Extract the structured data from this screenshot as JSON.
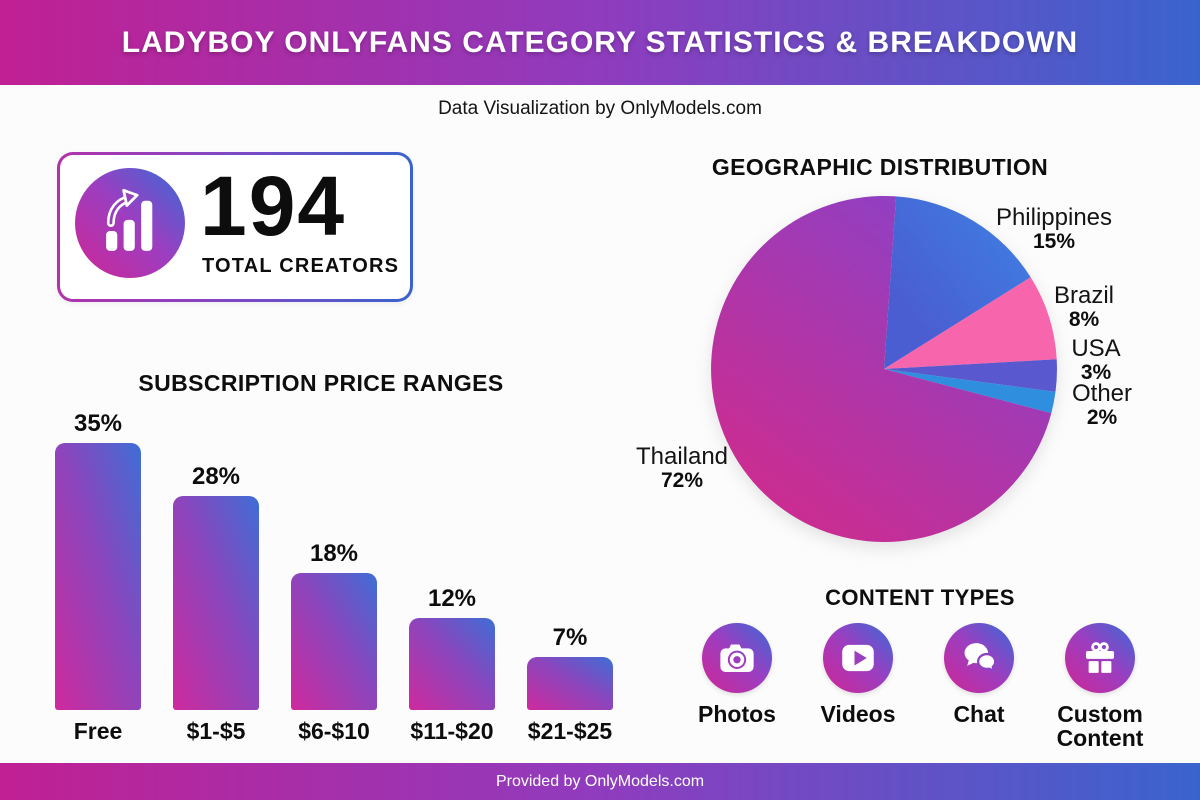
{
  "header": {
    "title": "LADYBOY ONLYFANS CATEGORY STATISTICS & BREAKDOWN"
  },
  "subtitle": "Data Visualization by OnlyModels.com",
  "stat_card": {
    "value": "194",
    "label": "TOTAL CREATORS",
    "icon": "bar-growth-arrow-icon"
  },
  "chart_data": [
    {
      "type": "bar",
      "title": "SUBSCRIPTION PRICE RANGES",
      "categories": [
        "Free",
        "$1-$5",
        "$6-$10",
        "$11-$20",
        "$21-$25"
      ],
      "values": [
        35,
        28,
        18,
        12,
        7
      ],
      "value_labels": [
        "35%",
        "28%",
        "18%",
        "12%",
        "7%"
      ],
      "unit": "percent",
      "ylim": [
        0,
        35
      ],
      "grid": false,
      "bar_gradient": [
        "#cf2a9e",
        "#8a46bd",
        "#3e6ed6"
      ]
    },
    {
      "type": "pie",
      "title": "GEOGRAPHIC DISTRIBUTION",
      "start_angle_deg": 4,
      "legend_position": "labels-around-pie",
      "slices": [
        {
          "label": "Philippines",
          "value": 15,
          "pct": "15%",
          "color": "#4a5ed2",
          "gradient": {
            "x1": "20%",
            "y1": "70%",
            "x2": "88%",
            "y2": "8%",
            "stops": [
              "#4a5ed2",
              "#3f7de2"
            ]
          }
        },
        {
          "label": "Brazil",
          "value": 8,
          "pct": "8%",
          "color": "#f766ac"
        },
        {
          "label": "USA",
          "value": 3,
          "pct": "3%",
          "color": "#5a58ce"
        },
        {
          "label": "Other",
          "value": 2,
          "pct": "2%",
          "color": "#2f8ede"
        },
        {
          "label": "Thailand",
          "value": 72,
          "pct": "72%",
          "color": "#a438ab",
          "gradient": {
            "x1": "72%",
            "y1": "8%",
            "x2": "16%",
            "y2": "84%",
            "stops": [
              "#8e40c4",
              "#c92d92"
            ]
          }
        }
      ]
    }
  ],
  "content_types": {
    "title": "CONTENT TYPES",
    "items": [
      {
        "label": "Photos",
        "icon": "camera-icon"
      },
      {
        "label": "Videos",
        "icon": "play-icon"
      },
      {
        "label": "Chat",
        "icon": "chat-bubbles-icon"
      },
      {
        "label": "Custom Content",
        "icon": "gift-icon"
      }
    ]
  },
  "footer": {
    "text": "Provided by OnlyModels.com"
  },
  "colors": {
    "banner_gradient": [
      "#c02093",
      "#8f3cbe",
      "#3a64cd"
    ],
    "icon_circle_gradient": [
      "#cf2695",
      "#9c3ec0",
      "#3a6ad8"
    ],
    "text": "#0d0d0d",
    "background": "#fcfcfc"
  }
}
